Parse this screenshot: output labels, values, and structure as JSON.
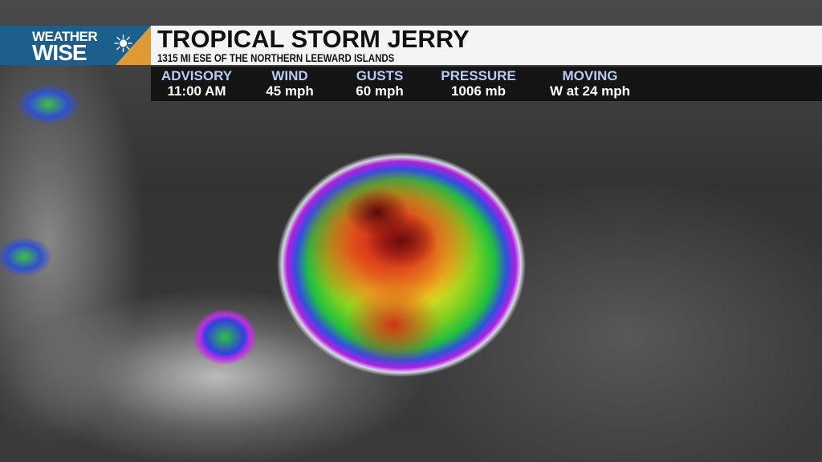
{
  "logo": {
    "line1": "WEATHER",
    "line2": "WISE",
    "icon": "sun-cloud-lightning-icon",
    "colors": {
      "blue": "#1d5f8c",
      "orange": "#e09a35"
    }
  },
  "header": {
    "title": "TROPICAL STORM JERRY",
    "subtitle": "1315 MI ESE OF THE NORTHERN LEEWARD ISLANDS"
  },
  "stats": [
    {
      "label": "ADVISORY",
      "value": "11:00 AM"
    },
    {
      "label": "WIND",
      "value": "45 mph"
    },
    {
      "label": "GUSTS",
      "value": "60 mph"
    },
    {
      "label": "PRESSURE",
      "value": "1006 mb"
    },
    {
      "label": "MOVING",
      "value": "W at 24 mph"
    }
  ],
  "map": {
    "type": "infrared satellite imagery",
    "label_color": "#b8ccf2"
  }
}
